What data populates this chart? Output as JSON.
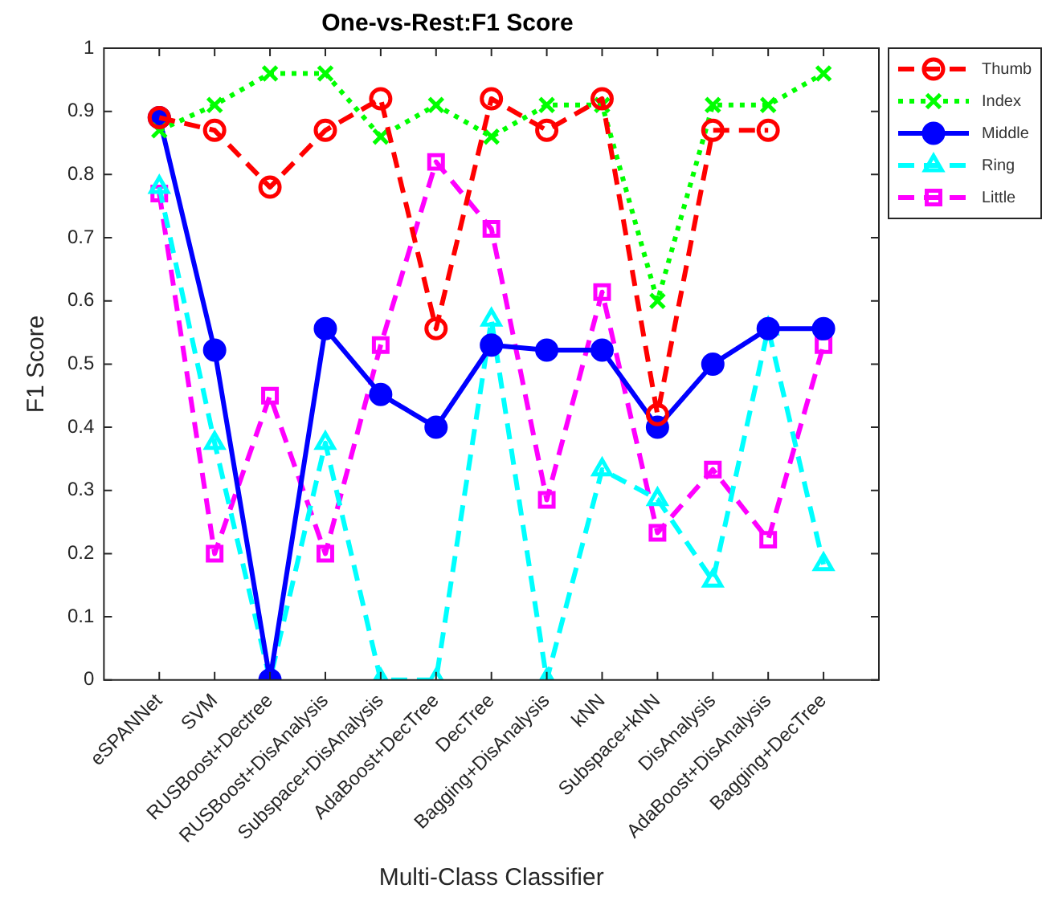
{
  "chart_data": {
    "type": "line",
    "title": "One-vs-Rest:F1 Score",
    "xlabel": "Multi-Class Classifier",
    "ylabel": "F1 Score",
    "categories": [
      "eSPANNet",
      "SVM",
      "RUSBoost+Dectree",
      "RUSBoost+DisAnalysis",
      "Subspace+DisAnalysis",
      "AdaBoost+DecTree",
      "DecTree",
      "Bagging+DisAnalysis",
      "kNN",
      "Subspace+kNN",
      "DisAnalysis",
      "AdaBoost+DisAnalysis",
      "Bagging+DecTree"
    ],
    "series": [
      {
        "name": "Thumb",
        "color": "#ff0000",
        "marker": "circle",
        "line_style": "dashed",
        "values": [
          0.89,
          0.87,
          0.78,
          0.87,
          0.92,
          0.556,
          0.92,
          0.87,
          0.92,
          0.42,
          0.87,
          0.87,
          null
        ]
      },
      {
        "name": "Index",
        "color": "#00ff00",
        "marker": "cross",
        "line_style": "dotted",
        "values": [
          0.87,
          0.91,
          0.96,
          0.96,
          0.86,
          0.91,
          0.86,
          0.91,
          0.91,
          0.6,
          0.91,
          0.91,
          0.96
        ]
      },
      {
        "name": "Middle",
        "color": "#0000ff",
        "marker": "circle",
        "line_style": "solid",
        "values": [
          0.89,
          0.522,
          0,
          0.556,
          0.452,
          0.4,
          0.53,
          0.522,
          0.522,
          0.4,
          0.5,
          0.556,
          0.556
        ]
      },
      {
        "name": "Ring",
        "color": "#00ffff",
        "marker": "triangle",
        "line_style": "dashed",
        "values": [
          0.78,
          0.375,
          0,
          0.375,
          0,
          0,
          0.57,
          0,
          0.333,
          0.286,
          0.157,
          0.556,
          0.183
        ]
      },
      {
        "name": "Little",
        "color": "#ff00ff",
        "marker": "square",
        "line_style": "dashed",
        "values": [
          0.77,
          0.2,
          0.45,
          0.2,
          0.53,
          0.82,
          0.714,
          0.285,
          0.614,
          0.233,
          0.333,
          0.222,
          0.53
        ]
      }
    ],
    "ylim": [
      0,
      1
    ],
    "yticks": [
      0,
      0.1,
      0.2,
      0.3,
      0.4,
      0.5,
      0.6,
      0.7,
      0.8,
      0.9,
      1
    ],
    "grid": false,
    "legend": "right"
  }
}
